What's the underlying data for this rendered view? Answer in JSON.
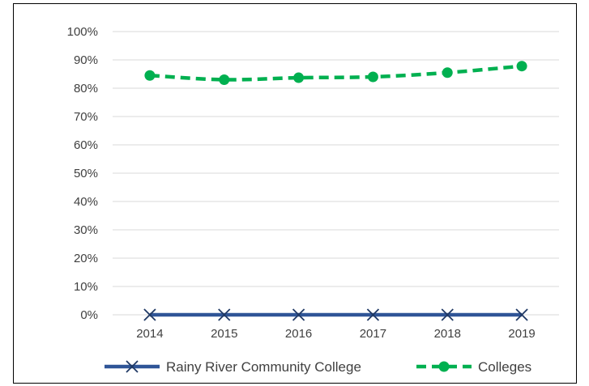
{
  "chart_data": {
    "type": "line",
    "categories": [
      "2014",
      "2015",
      "2016",
      "2017",
      "2018",
      "2019"
    ],
    "ylim": [
      0,
      100
    ],
    "y_ticks": [
      "0%",
      "10%",
      "20%",
      "30%",
      "40%",
      "50%",
      "60%",
      "70%",
      "80%",
      "90%",
      "100%"
    ],
    "grid": "horizontal",
    "legend_position": "bottom",
    "series": [
      {
        "name": "Rainy River Community College",
        "values": [
          0,
          0,
          0,
          0,
          0,
          0
        ],
        "color": "#2F5597",
        "line_style": "solid",
        "marker": "x"
      },
      {
        "name": "Colleges",
        "values": [
          84.5,
          83,
          83.7,
          84,
          85.5,
          87.8
        ],
        "color": "#00B050",
        "line_style": "dashed",
        "marker": "circle"
      }
    ]
  }
}
